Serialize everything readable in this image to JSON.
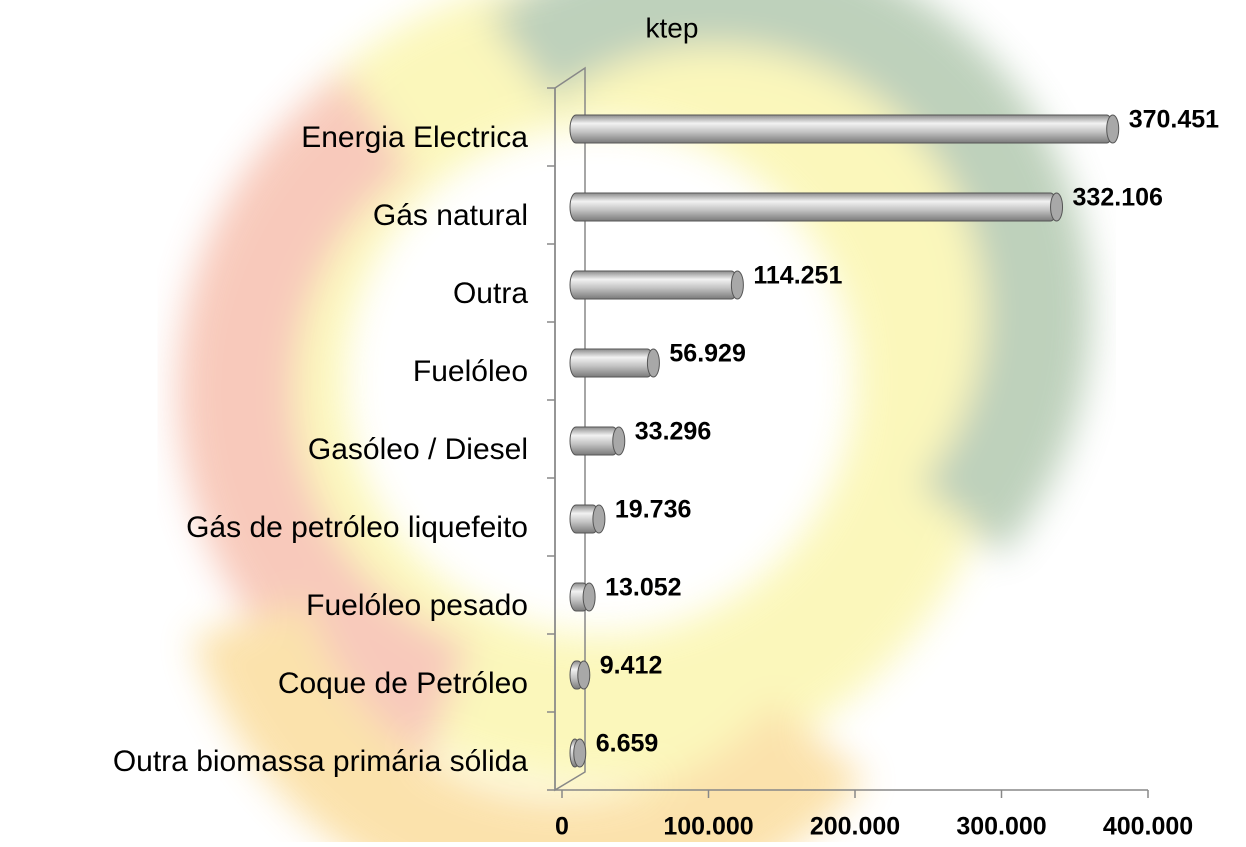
{
  "chart_data": {
    "type": "bar",
    "orientation": "horizontal",
    "title": "ktep",
    "categories": [
      "Energia Electrica",
      "Gás natural",
      "Outra",
      "Fuelóleo",
      "Gasóleo / Diesel",
      "Gás de petróleo liquefeito",
      "Fuelóleo pesado",
      "Coque de Petróleo",
      "Outra biomassa primária sólida"
    ],
    "values": [
      370451,
      332106,
      114251,
      56929,
      33296,
      19736,
      13052,
      9412,
      6659
    ],
    "value_labels": [
      "370.451",
      "332.106",
      "114.251",
      "56.929",
      "33.296",
      "19.736",
      "13.052",
      "9.412",
      "6.659"
    ],
    "color": "#b8b8b8",
    "xlim": [
      0,
      400000
    ],
    "xticks": [
      0,
      {
        "value": 100000,
        "label": "100.000"
      },
      {
        "value": 200000,
        "label": "200.000"
      },
      {
        "value": 300000,
        "label": "300.000"
      },
      {
        "value": 400000,
        "label": "400.000"
      }
    ]
  }
}
